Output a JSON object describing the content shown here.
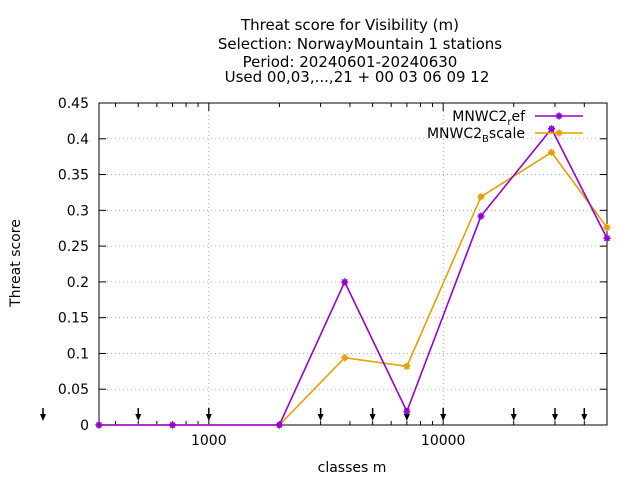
{
  "chart_data": {
    "type": "line",
    "title_lines": [
      "Threat score  for Visibility (m)",
      "Selection: NorwayMountain      1 stations",
      "Period: 20240601-20240630",
      "Used 00,03,...,21 + 00 03 06 09 12"
    ],
    "xlabel": "classes m",
    "ylabel": "Threat score",
    "x_scale": "log",
    "xlim": [
      340,
      50000
    ],
    "ylim": [
      0,
      0.45
    ],
    "x_ticks": [
      1000,
      10000
    ],
    "x_tick_labels": [
      "1000",
      "10000"
    ],
    "y_ticks": [
      0,
      0.05,
      0.1,
      0.15,
      0.2,
      0.25,
      0.3,
      0.35,
      0.4,
      0.45
    ],
    "y_tick_labels": [
      "0",
      "0.05",
      "0.1",
      "0.15",
      "0.2",
      "0.25",
      "0.3",
      "0.35",
      "0.4",
      "0.45"
    ],
    "grid": true,
    "legend_position": "top-right",
    "class_markers_x": [
      340,
      500,
      1000,
      3000,
      5000,
      7000,
      10000,
      20000,
      30000,
      40000
    ],
    "series": [
      {
        "name": "MNWC2_ref",
        "legend_main": "MNWC2",
        "legend_sub": "r",
        "legend_tail": "ef",
        "color": "#9400d3",
        "x": [
          340,
          700,
          2000,
          3800,
          7000,
          14500,
          29000,
          50000
        ],
        "y": [
          0,
          0,
          0,
          0.2,
          0.019,
          0.292,
          0.414,
          0.261
        ]
      },
      {
        "name": "MNWC2_Bscale",
        "legend_main": "MNWC2",
        "legend_sub": "B",
        "legend_tail": "scale",
        "color": "#e69f00",
        "x": [
          340,
          700,
          2000,
          3800,
          7000,
          14500,
          29000,
          50000
        ],
        "y": [
          0,
          0,
          0,
          0.094,
          0.082,
          0.319,
          0.381,
          0.276
        ]
      }
    ]
  }
}
